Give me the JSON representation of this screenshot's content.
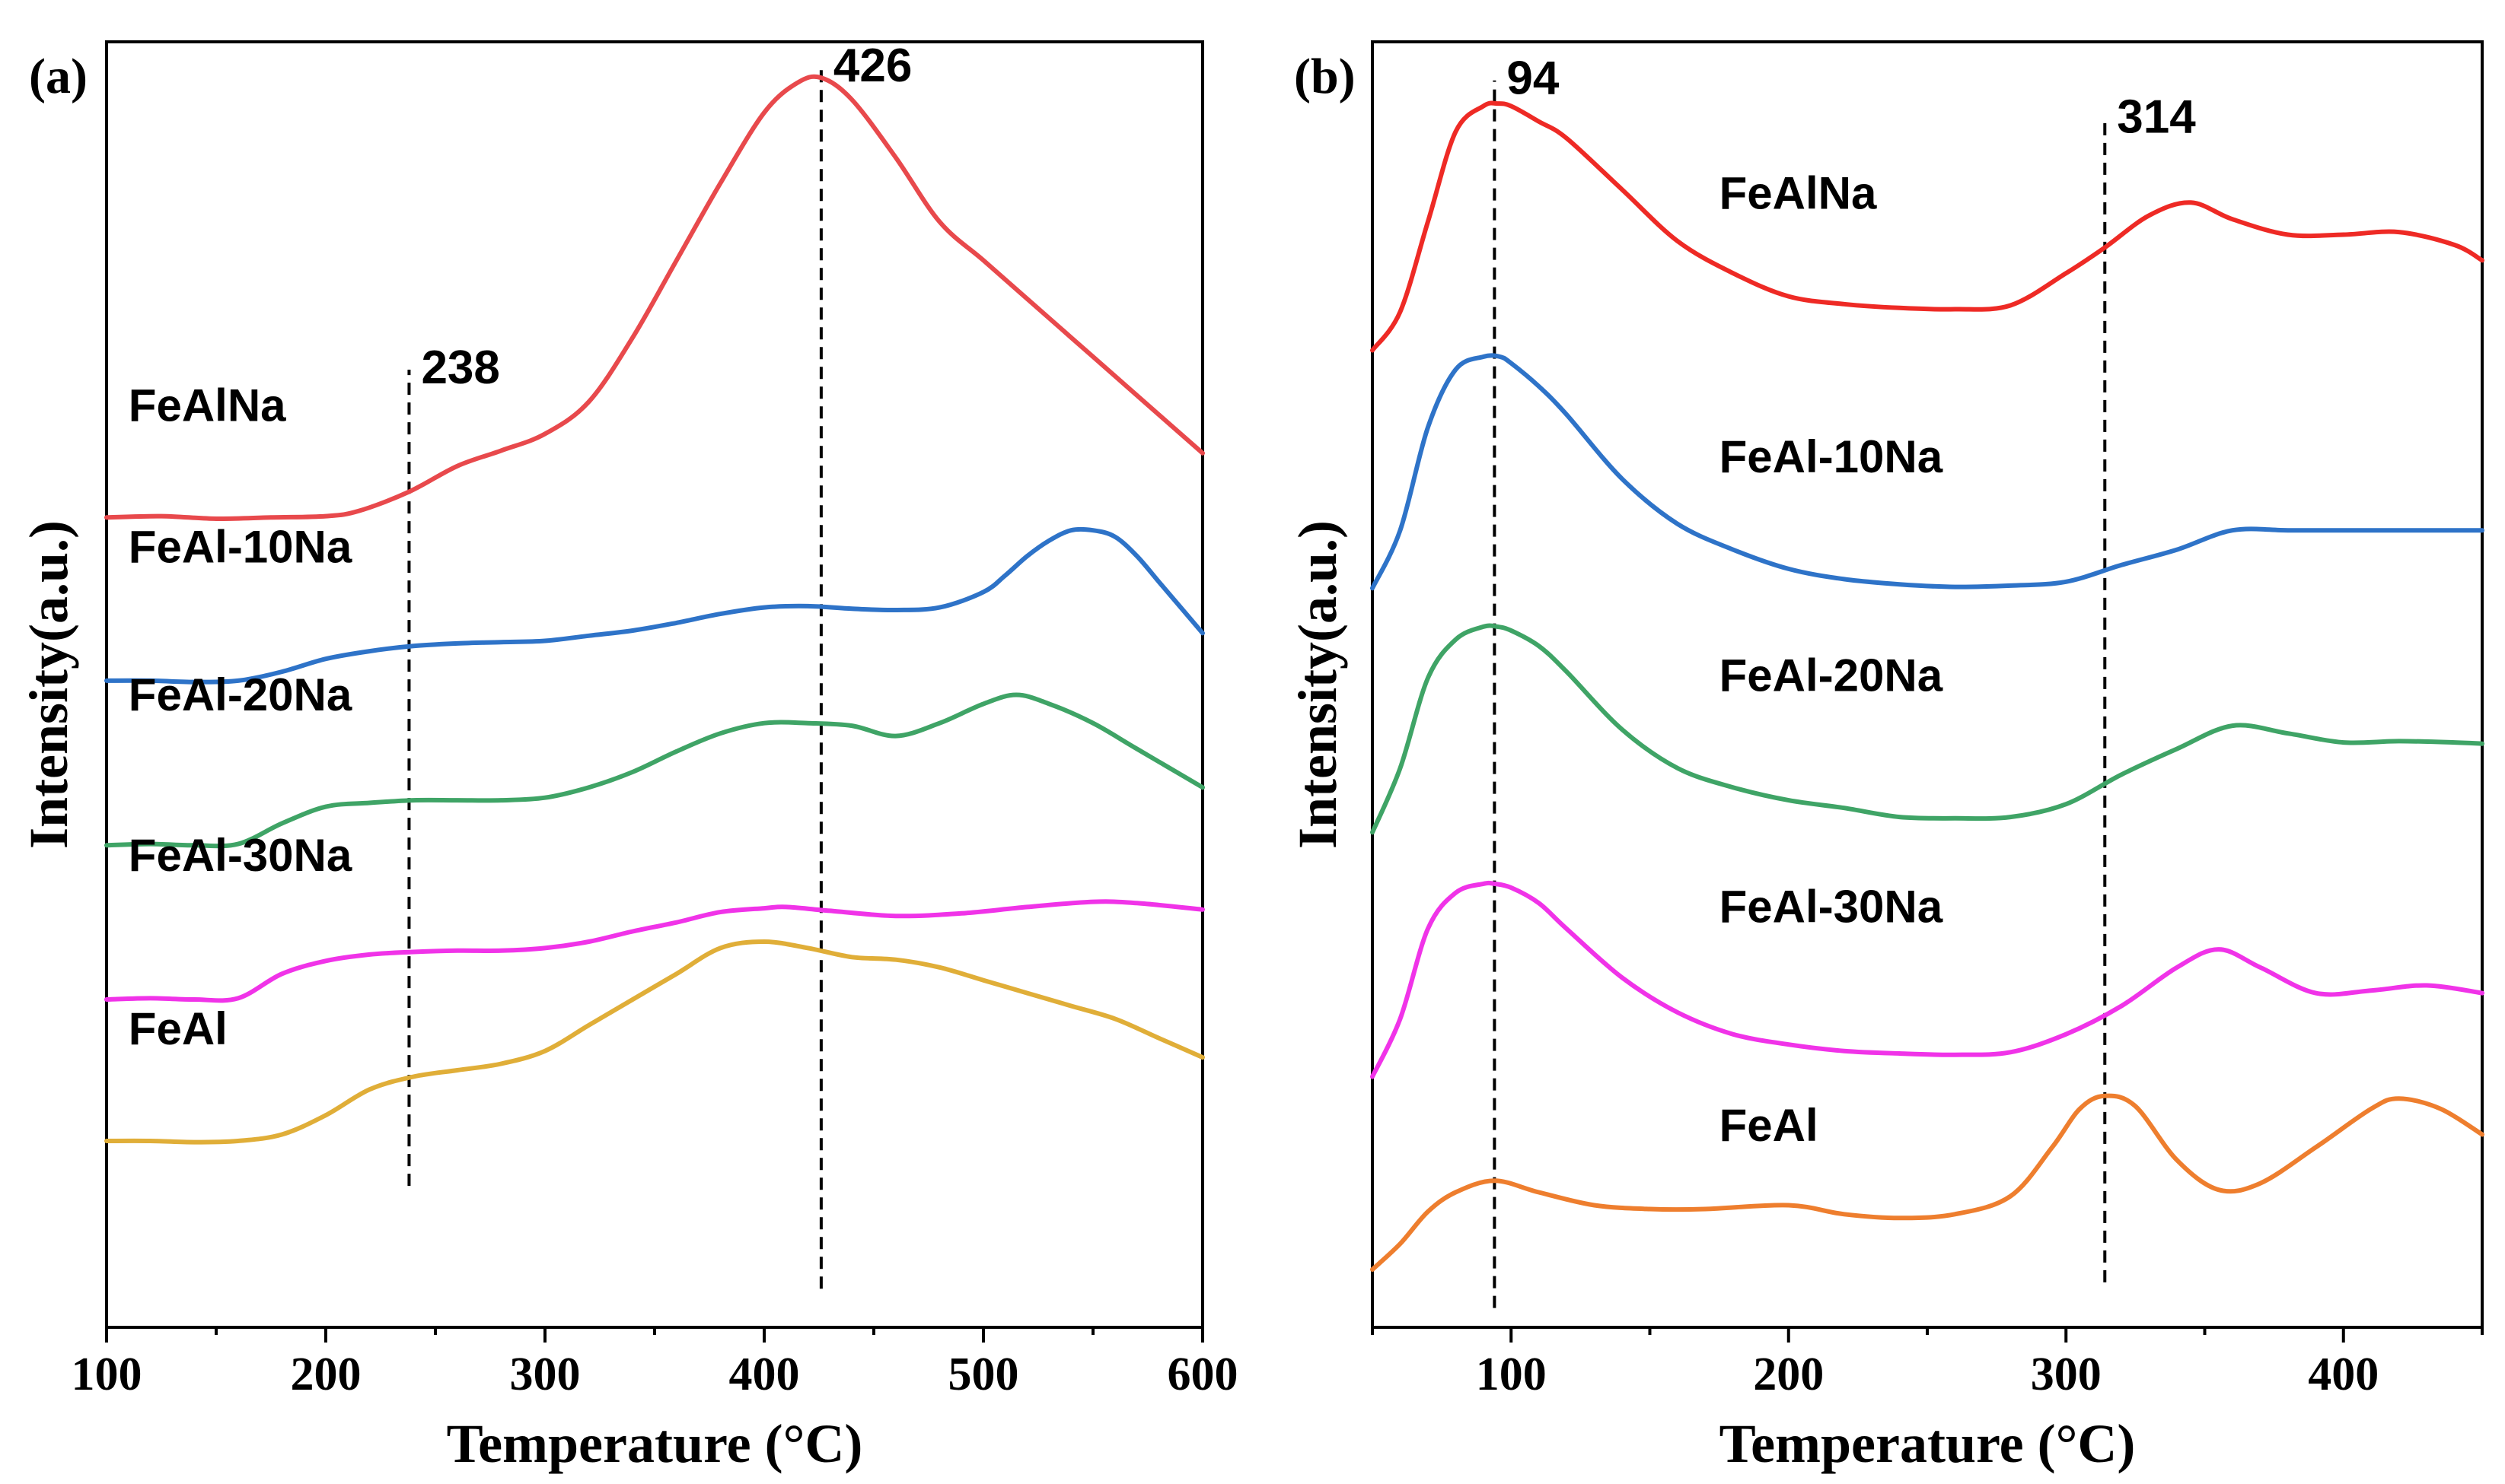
{
  "chart_data": [
    {
      "type": "line",
      "panel": "(a)",
      "xlabel": "Temperature (°C)",
      "ylabel": "Intensity(a.u.)",
      "xlim": [
        100,
        600
      ],
      "ylim": [
        0,
        10
      ],
      "xticks": [
        100,
        200,
        300,
        400,
        500,
        600
      ],
      "yticks_shown": false,
      "grid": false,
      "legend": "inline labels",
      "series": [
        {
          "name": "FeAlNa",
          "color": "#e8494c",
          "label_x": 110,
          "label_y": 7.05,
          "x": [
            100,
            125,
            150,
            175,
            200,
            215,
            238,
            260,
            280,
            300,
            320,
            340,
            360,
            380,
            400,
            415,
            426,
            440,
            460,
            480,
            500,
            520,
            540,
            560,
            580,
            600
          ],
          "y": [
            6.3,
            6.31,
            6.29,
            6.3,
            6.31,
            6.35,
            6.5,
            6.7,
            6.82,
            6.95,
            7.2,
            7.7,
            8.3,
            8.9,
            9.45,
            9.68,
            9.72,
            9.55,
            9.1,
            8.6,
            8.3,
            8.0,
            7.7,
            7.4,
            7.1,
            6.8
          ]
        },
        {
          "name": "FeAl-10Na",
          "color": "#2e73c8",
          "label_x": 110,
          "label_y": 5.95,
          "x": [
            100,
            120,
            140,
            160,
            180,
            200,
            220,
            240,
            260,
            280,
            300,
            320,
            340,
            360,
            380,
            400,
            420,
            440,
            460,
            480,
            500,
            510,
            520,
            530,
            540,
            550,
            560,
            570,
            580,
            590,
            600
          ],
          "y": [
            5.03,
            5.03,
            5.02,
            5.03,
            5.1,
            5.2,
            5.26,
            5.3,
            5.32,
            5.33,
            5.34,
            5.38,
            5.42,
            5.48,
            5.55,
            5.6,
            5.61,
            5.59,
            5.58,
            5.6,
            5.72,
            5.85,
            6.0,
            6.12,
            6.2,
            6.2,
            6.15,
            6.0,
            5.8,
            5.6,
            5.4
          ]
        },
        {
          "name": "FeAl-20Na",
          "color": "#3fa466",
          "label_x": 110,
          "label_y": 4.8,
          "x": [
            100,
            120,
            140,
            160,
            180,
            200,
            220,
            240,
            260,
            280,
            300,
            320,
            340,
            360,
            380,
            400,
            420,
            440,
            460,
            480,
            500,
            515,
            530,
            550,
            570,
            600
          ],
          "y": [
            3.75,
            3.76,
            3.75,
            3.76,
            3.92,
            4.05,
            4.08,
            4.1,
            4.1,
            4.1,
            4.12,
            4.2,
            4.32,
            4.48,
            4.62,
            4.7,
            4.7,
            4.68,
            4.6,
            4.7,
            4.85,
            4.92,
            4.85,
            4.7,
            4.5,
            4.2
          ]
        },
        {
          "name": "FeAl-30Na",
          "color": "#f033e8",
          "label_x": 110,
          "label_y": 3.55,
          "x": [
            100,
            120,
            140,
            160,
            180,
            200,
            220,
            240,
            260,
            280,
            300,
            320,
            340,
            360,
            380,
            400,
            410,
            430,
            460,
            490,
            520,
            550,
            570,
            600
          ],
          "y": [
            2.55,
            2.56,
            2.55,
            2.56,
            2.75,
            2.85,
            2.9,
            2.92,
            2.93,
            2.93,
            2.95,
            3.0,
            3.08,
            3.15,
            3.23,
            3.26,
            3.27,
            3.24,
            3.2,
            3.22,
            3.27,
            3.31,
            3.3,
            3.25
          ]
        },
        {
          "name": "FeAl",
          "color": "#e0ae38",
          "label_x": 110,
          "label_y": 2.2,
          "x": [
            100,
            120,
            140,
            160,
            180,
            200,
            220,
            240,
            260,
            280,
            300,
            320,
            340,
            360,
            380,
            400,
            420,
            440,
            460,
            480,
            500,
            520,
            540,
            560,
            580,
            600
          ],
          "y": [
            1.45,
            1.45,
            1.44,
            1.45,
            1.5,
            1.65,
            1.85,
            1.95,
            2.0,
            2.05,
            2.15,
            2.35,
            2.55,
            2.75,
            2.95,
            3.0,
            2.95,
            2.88,
            2.86,
            2.8,
            2.7,
            2.6,
            2.5,
            2.4,
            2.25,
            2.1
          ]
        }
      ],
      "annotations": [
        {
          "text": "238",
          "x": 238,
          "line_from": 1.1,
          "line_to": 7.45
        },
        {
          "text": "426",
          "x": 426,
          "line_from": 0.3,
          "line_to": 9.8
        }
      ]
    },
    {
      "type": "line",
      "panel": "(b)",
      "xlabel": "Temperature (°C)",
      "ylabel": "Intensity(a.u.)",
      "xlim": [
        50,
        450
      ],
      "ylim": [
        0,
        10
      ],
      "xticks": [
        100,
        200,
        300,
        400
      ],
      "yticks_shown": false,
      "grid": false,
      "legend": "inline labels",
      "series": [
        {
          "name": "FeAlNa",
          "color": "#ee2a25",
          "label_x": 175,
          "label_y": 8.7,
          "x": [
            50,
            60,
            70,
            80,
            90,
            95,
            100,
            110,
            120,
            140,
            160,
            180,
            200,
            220,
            240,
            260,
            280,
            300,
            314,
            330,
            345,
            360,
            380,
            400,
            420,
            440,
            450
          ],
          "y": [
            7.6,
            7.9,
            8.6,
            9.3,
            9.5,
            9.52,
            9.5,
            9.38,
            9.25,
            8.85,
            8.45,
            8.2,
            8.02,
            7.96,
            7.93,
            7.92,
            7.95,
            8.2,
            8.4,
            8.65,
            8.75,
            8.62,
            8.5,
            8.5,
            8.52,
            8.42,
            8.3
          ]
        },
        {
          "name": "FeAl-10Na",
          "color": "#2e73c8",
          "label_x": 175,
          "label_y": 6.65,
          "x": [
            50,
            60,
            70,
            80,
            90,
            96,
            100,
            110,
            120,
            140,
            160,
            180,
            200,
            220,
            240,
            260,
            280,
            300,
            320,
            340,
            360,
            380,
            400,
            420,
            440,
            450
          ],
          "y": [
            5.75,
            6.2,
            7.0,
            7.45,
            7.55,
            7.55,
            7.5,
            7.32,
            7.1,
            6.6,
            6.25,
            6.05,
            5.9,
            5.82,
            5.78,
            5.76,
            5.77,
            5.8,
            5.93,
            6.05,
            6.2,
            6.2,
            6.2,
            6.2,
            6.2,
            6.2
          ]
        },
        {
          "name": "FeAl-20Na",
          "color": "#3fa466",
          "label_x": 175,
          "label_y": 4.95,
          "x": [
            50,
            60,
            70,
            80,
            90,
            95,
            100,
            110,
            120,
            140,
            160,
            180,
            200,
            220,
            240,
            260,
            280,
            300,
            320,
            340,
            360,
            380,
            400,
            420,
            440,
            450
          ],
          "y": [
            3.85,
            4.35,
            5.05,
            5.35,
            5.45,
            5.45,
            5.42,
            5.3,
            5.1,
            4.65,
            4.35,
            4.2,
            4.1,
            4.04,
            3.97,
            3.96,
            3.97,
            4.07,
            4.3,
            4.5,
            4.68,
            4.62,
            4.55,
            4.56,
            4.55,
            4.54
          ]
        },
        {
          "name": "FeAl-30Na",
          "color": "#f033e8",
          "label_x": 175,
          "label_y": 3.15,
          "x": [
            50,
            60,
            70,
            80,
            90,
            94,
            100,
            110,
            120,
            140,
            160,
            180,
            200,
            220,
            240,
            260,
            280,
            300,
            320,
            340,
            355,
            370,
            390,
            410,
            430,
            450
          ],
          "y": [
            1.95,
            2.4,
            3.1,
            3.38,
            3.45,
            3.45,
            3.42,
            3.3,
            3.1,
            2.72,
            2.45,
            2.28,
            2.2,
            2.15,
            2.13,
            2.12,
            2.14,
            2.28,
            2.5,
            2.8,
            2.94,
            2.8,
            2.6,
            2.62,
            2.66,
            2.6
          ]
        },
        {
          "name": "FeAl",
          "color": "#ee7e2e",
          "label_x": 175,
          "label_y": 1.45,
          "x": [
            50,
            60,
            70,
            80,
            94,
            110,
            130,
            150,
            170,
            200,
            220,
            240,
            260,
            280,
            295,
            305,
            314,
            325,
            340,
            355,
            370,
            390,
            410,
            420,
            435,
            450
          ],
          "y": [
            0.45,
            0.65,
            0.9,
            1.05,
            1.14,
            1.05,
            0.95,
            0.92,
            0.92,
            0.95,
            0.88,
            0.85,
            0.88,
            1.02,
            1.4,
            1.7,
            1.8,
            1.72,
            1.3,
            1.07,
            1.12,
            1.4,
            1.7,
            1.78,
            1.7,
            1.5
          ]
        }
      ],
      "annotations": [
        {
          "text": "94",
          "x": 94,
          "line_from": 0.15,
          "line_to": 9.7
        },
        {
          "text": "314",
          "x": 314,
          "line_from": 0.35,
          "line_to": 9.4
        }
      ]
    }
  ]
}
